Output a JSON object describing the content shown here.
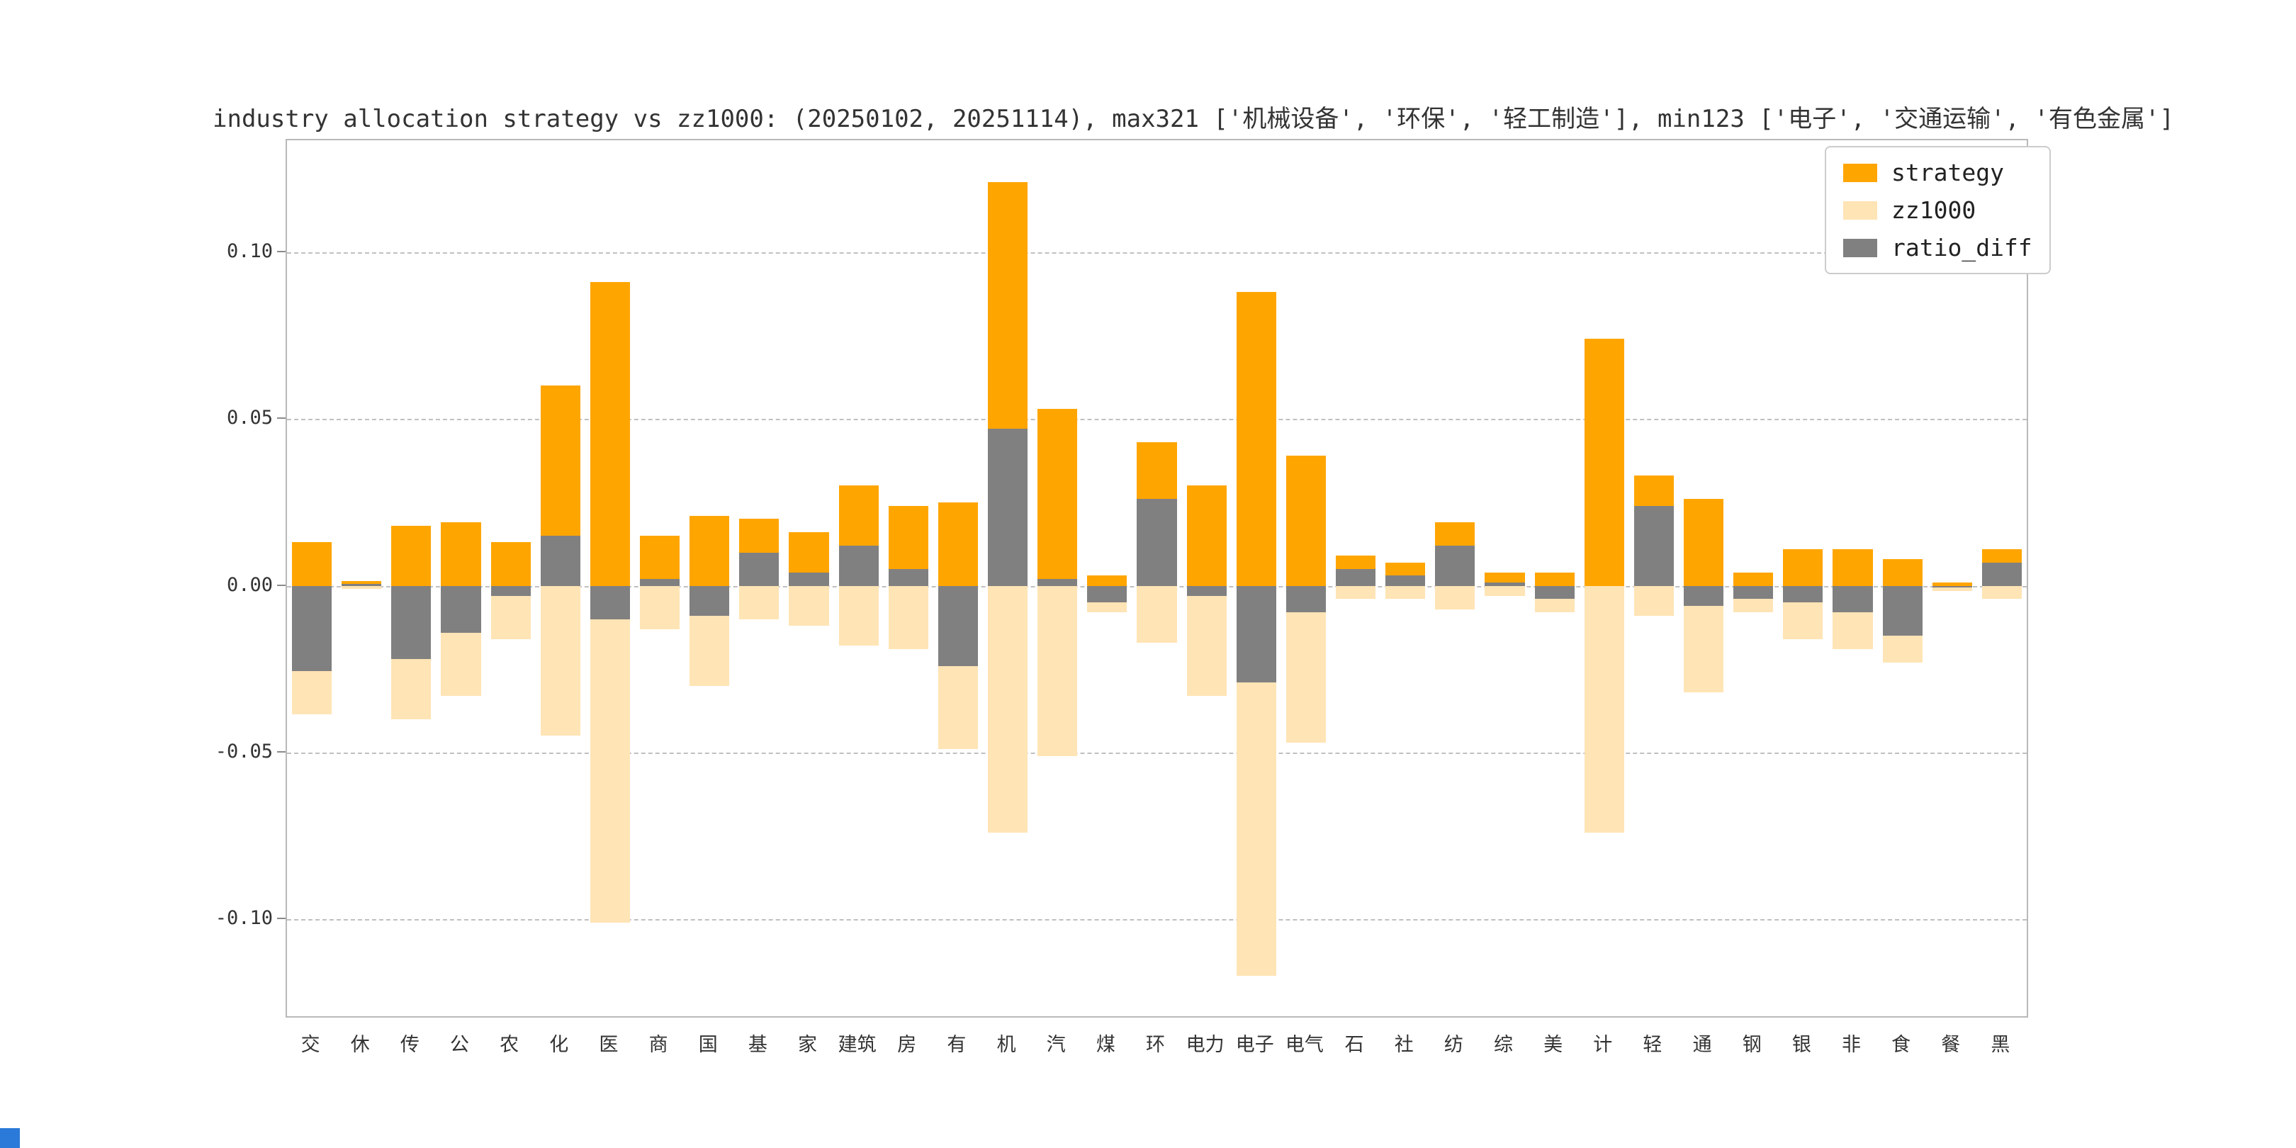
{
  "title": "industry allocation strategy vs zz1000: (20250102, 20251114), max321 ['机械设备', '环保', '轻工制造'], min123 ['电子', '交通运输', '有色金属']",
  "legend": {
    "items": [
      {
        "label": "strategy",
        "color": "#FFA500"
      },
      {
        "label": "zz1000",
        "color": "#FFE4B5"
      },
      {
        "label": "ratio_diff",
        "color": "#808080"
      }
    ]
  },
  "chart_data": {
    "type": "bar",
    "title": "industry allocation strategy vs zz1000: (20250102, 20251114), max321 ['机械设备', '环保', '轻工制造'], min123 ['电子', '交通运输', '有色金属']",
    "xlabel": "",
    "ylabel": "",
    "ylim": [
      -0.129,
      0.1335
    ],
    "grid": "dashed horizontal gridlines",
    "legend_position": "upper right",
    "note": "zz1000 weights are plotted downward as negative bars; ratio_diff = strategy - zz1000, drawn over the other bars",
    "yticks": [
      {
        "value": 0.1,
        "label": "0.10"
      },
      {
        "value": 0.05,
        "label": "0.05"
      },
      {
        "value": 0.0,
        "label": "0.00"
      },
      {
        "value": -0.05,
        "label": "-0.05"
      },
      {
        "value": -0.1,
        "label": "-0.10"
      }
    ],
    "categories": [
      "交",
      "休",
      "传",
      "公",
      "农",
      "化",
      "医",
      "商",
      "国",
      "基",
      "家",
      "建筑",
      "房",
      "有",
      "机",
      "汽",
      "煤",
      "环",
      "电力",
      "电子",
      "电气",
      "石",
      "社",
      "纺",
      "综",
      "美",
      "计",
      "轻",
      "通",
      "钢",
      "银",
      "非",
      "食",
      "餐",
      "黑"
    ],
    "series": [
      {
        "name": "strategy",
        "color": "#FFA500",
        "plotted_as": "positive",
        "values": [
          0.013,
          0.0015,
          0.018,
          0.019,
          0.013,
          0.06,
          0.091,
          0.015,
          0.021,
          0.02,
          0.016,
          0.03,
          0.024,
          0.025,
          0.121,
          0.053,
          0.003,
          0.043,
          0.03,
          0.088,
          0.039,
          0.009,
          0.007,
          0.019,
          0.004,
          0.004,
          0.074,
          0.033,
          0.026,
          0.004,
          0.011,
          0.011,
          0.008,
          0.001,
          0.011
        ]
      },
      {
        "name": "zz1000",
        "color": "#FFE4B5",
        "plotted_as": "negative",
        "values": [
          0.0385,
          0.001,
          0.04,
          0.033,
          0.016,
          0.045,
          0.101,
          0.013,
          0.03,
          0.01,
          0.012,
          0.018,
          0.019,
          0.049,
          0.074,
          0.051,
          0.008,
          0.017,
          0.033,
          0.117,
          0.047,
          0.004,
          0.004,
          0.007,
          0.003,
          0.008,
          0.074,
          0.009,
          0.032,
          0.008,
          0.016,
          0.019,
          0.023,
          0.0015,
          0.004
        ]
      },
      {
        "name": "ratio_diff",
        "color": "#808080",
        "plotted_as": "signed",
        "values": [
          -0.0255,
          0.0005,
          -0.022,
          -0.014,
          -0.003,
          0.015,
          -0.01,
          0.002,
          -0.009,
          0.01,
          0.004,
          0.012,
          0.005,
          -0.024,
          0.047,
          0.002,
          -0.005,
          0.026,
          -0.003,
          -0.029,
          -0.008,
          0.005,
          0.003,
          0.012,
          0.001,
          -0.004,
          0.0,
          0.024,
          -0.006,
          -0.004,
          -0.005,
          -0.008,
          -0.015,
          -0.0005,
          0.007
        ]
      }
    ]
  },
  "artifacts": {
    "bottom_left_square_color": "#2b79d8"
  }
}
